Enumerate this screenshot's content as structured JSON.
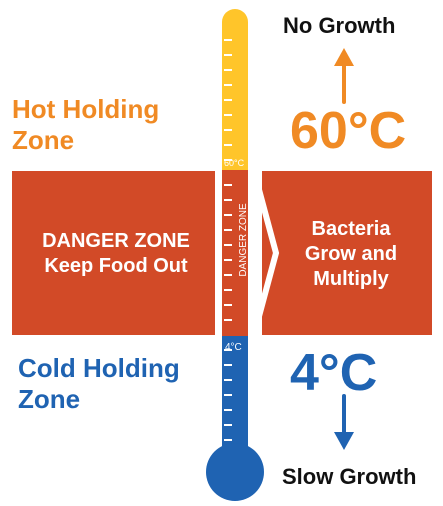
{
  "colors": {
    "hot": "#f08a24",
    "danger": "#d24a27",
    "cold": "#1f63b2",
    "thermo_hot": "#ffc52a",
    "thermo_cold": "#1f63b2"
  },
  "top_right": {
    "no_growth": "No Growth",
    "hot_temp": "60°C"
  },
  "left_labels": {
    "hot_zone": [
      "Hot Holding",
      "Zone"
    ],
    "cold_zone": [
      "Cold Holding",
      "Zone"
    ]
  },
  "danger_band": {
    "left": [
      "DANGER ZONE",
      "Keep Food Out"
    ],
    "right": [
      "Bacteria",
      "Grow and",
      "Multiply"
    ]
  },
  "thermometer": {
    "danger_vertical_label": "DANGER ZONE",
    "marker_60": "60°C",
    "marker_4": "4°C"
  },
  "bottom_right": {
    "cold_temp": "4°C",
    "slow_growth": "Slow Growth"
  }
}
